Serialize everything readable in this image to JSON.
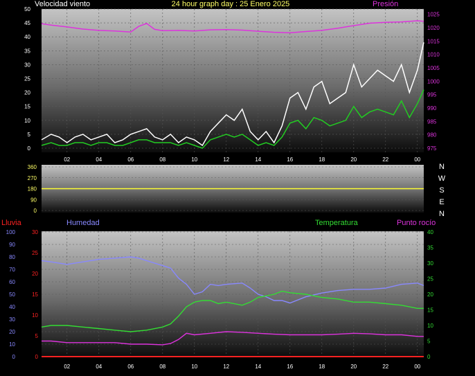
{
  "colors": {
    "wind_avg": "#22cc22",
    "wind_gust": "#ffffff",
    "pressure": "#dd33dd",
    "direction": "#ffff33",
    "rain": "#ff2222",
    "humidity": "#8888ff",
    "temperature": "#33dd33",
    "dewpoint": "#dd33dd",
    "text_white": "#ffffff",
    "text_yellow": "#ffff66"
  },
  "header": {
    "wind_label": "Velocidad viento",
    "title": "24 hour graph day : 25 Enero 2025",
    "pressure_label": "Presión"
  },
  "compass": [
    "N",
    "W",
    "S",
    "E",
    "N"
  ],
  "bottom_labels": {
    "rain": "Lluvia",
    "humidity": "Humedad",
    "temperature": "Temperatura",
    "dewpoint": "Punto rocío"
  },
  "chart_data": [
    {
      "type": "line",
      "name": "wind_pressure",
      "x_ticks": [
        "02",
        "04",
        "06",
        "08",
        "10",
        "12",
        "14",
        "16",
        "18",
        "20",
        "22",
        "00"
      ],
      "x_tick_hours": [
        2,
        4,
        6,
        8,
        10,
        12,
        14,
        16,
        18,
        20,
        22,
        24
      ],
      "xlim": [
        0.4,
        24.4
      ],
      "y_left_ticks": [
        "0",
        "5",
        "10",
        "15",
        "20",
        "25",
        "30",
        "35",
        "40",
        "45",
        "50"
      ],
      "ylim_left": [
        0,
        50
      ],
      "y_right_ticks": [
        "975",
        "980",
        "985",
        "990",
        "995",
        "1000",
        "1005",
        "1010",
        "1015",
        "1020",
        "1025"
      ],
      "ylim_right": [
        975,
        1027
      ],
      "series": [
        {
          "key": "pressure",
          "axis": "right",
          "x": [
            0.4,
            1,
            2,
            3,
            4,
            5,
            6,
            6.5,
            7,
            7.5,
            8,
            9,
            10,
            11,
            12,
            13,
            14,
            15,
            16,
            17,
            18,
            19,
            20,
            21,
            22,
            23,
            24,
            24.4
          ],
          "y": [
            1021.5,
            1021,
            1020.3,
            1019.5,
            1019.0,
            1018.8,
            1018.4,
            1020.5,
            1021.6,
            1019.4,
            1018.9,
            1019,
            1018.8,
            1019.2,
            1019.3,
            1019.1,
            1018.7,
            1018.3,
            1018.1,
            1018.6,
            1019.0,
            1019.8,
            1020.8,
            1021.7,
            1022.0,
            1022.2,
            1022.6,
            1022.4
          ]
        },
        {
          "key": "wind_gust",
          "axis": "left",
          "x": [
            0.4,
            1,
            1.5,
            2,
            2.5,
            3,
            3.5,
            4,
            4.5,
            5,
            5.5,
            6,
            6.5,
            7,
            7.5,
            8,
            8.5,
            9,
            9.5,
            10,
            10.5,
            11,
            11.5,
            12,
            12.5,
            13,
            13.5,
            14,
            14.5,
            15,
            15.5,
            16,
            16.5,
            17,
            17.5,
            18,
            18.5,
            19,
            19.5,
            20,
            20.5,
            21,
            21.5,
            22,
            22.5,
            23,
            23.5,
            24,
            24.4
          ],
          "y": [
            3,
            5,
            4,
            2,
            4,
            5,
            3,
            4,
            5,
            2,
            3,
            5,
            6,
            7,
            4,
            3,
            5,
            2,
            4,
            3,
            1,
            6,
            9,
            12,
            10,
            14,
            6,
            3,
            6,
            2,
            8,
            18,
            20,
            14,
            22,
            24,
            16,
            18,
            20,
            30,
            22,
            25,
            28,
            26,
            24,
            30,
            20,
            28,
            38
          ]
        },
        {
          "key": "wind_avg",
          "axis": "left",
          "x": [
            0.4,
            1,
            1.5,
            2,
            2.5,
            3,
            3.5,
            4,
            4.5,
            5,
            5.5,
            6,
            6.5,
            7,
            7.5,
            8,
            8.5,
            9,
            9.5,
            10,
            10.5,
            11,
            11.5,
            12,
            12.5,
            13,
            13.5,
            14,
            14.5,
            15,
            15.5,
            16,
            16.5,
            17,
            17.5,
            18,
            18.5,
            19,
            19.5,
            20,
            20.5,
            21,
            21.5,
            22,
            22.5,
            23,
            23.5,
            24,
            24.4
          ],
          "y": [
            1,
            2,
            1,
            1,
            2,
            2,
            1,
            2,
            2,
            1,
            1,
            2,
            3,
            3,
            2,
            2,
            2,
            1,
            2,
            1,
            0,
            3,
            4,
            5,
            4,
            5,
            3,
            1,
            2,
            1,
            4,
            9,
            10,
            7,
            11,
            10,
            8,
            9,
            10,
            15,
            11,
            13,
            14,
            13,
            12,
            17,
            11,
            16,
            21
          ]
        }
      ]
    },
    {
      "type": "line",
      "name": "wind_direction",
      "x_tick_hours": [
        2,
        4,
        6,
        8,
        10,
        12,
        14,
        16,
        18,
        20,
        22,
        24
      ],
      "xlim": [
        0.4,
        24.4
      ],
      "y_ticks": [
        "360",
        "270",
        "180",
        "90",
        "0"
      ],
      "ylim": [
        0,
        360
      ],
      "series": [
        {
          "key": "direction",
          "x": [
            0.4,
            24.4
          ],
          "y": [
            180,
            180
          ]
        }
      ]
    },
    {
      "type": "line",
      "name": "humidity_temperature",
      "x_ticks": [
        "02",
        "04",
        "06",
        "08",
        "10",
        "12",
        "14",
        "16",
        "18",
        "20",
        "22",
        "00"
      ],
      "x_tick_hours": [
        2,
        4,
        6,
        8,
        10,
        12,
        14,
        16,
        18,
        20,
        22,
        24
      ],
      "xlim": [
        0.4,
        24.4
      ],
      "y_humidity_ticks": [
        "0",
        "10",
        "20",
        "30",
        "40",
        "50",
        "60",
        "70",
        "80",
        "90",
        "100"
      ],
      "ylim_humidity": [
        0,
        100
      ],
      "y_rain_ticks": [
        "0",
        "5",
        "10",
        "15",
        "20",
        "25",
        "30"
      ],
      "ylim_rain": [
        0,
        30
      ],
      "y_temp_ticks": [
        "0",
        "5",
        "10",
        "15",
        "20",
        "25",
        "30",
        "35",
        "40"
      ],
      "ylim_temp": [
        0,
        40
      ],
      "series": [
        {
          "key": "humidity",
          "axis": "humidity",
          "x": [
            0.4,
            1,
            2,
            3,
            4,
            5,
            6,
            6.5,
            7,
            8,
            8.5,
            9,
            9.5,
            10,
            10.5,
            11,
            11.5,
            12,
            13,
            13.5,
            14,
            14.5,
            15,
            15.5,
            16,
            17,
            18,
            19,
            20,
            21,
            22,
            23,
            24,
            24.4
          ],
          "y": [
            77,
            76,
            74,
            76,
            78,
            79,
            80,
            79,
            77,
            73,
            71,
            63,
            58,
            50,
            52,
            58,
            57,
            58,
            59,
            55,
            50,
            48,
            45,
            45,
            43,
            48,
            51,
            53,
            54,
            54,
            55,
            58,
            59,
            57
          ]
        },
        {
          "key": "temperature",
          "axis": "temp",
          "x": [
            0.4,
            1,
            2,
            3,
            4,
            5,
            6,
            7,
            8,
            8.5,
            9,
            9.5,
            10,
            10.5,
            11,
            11.5,
            12,
            13,
            13.5,
            14,
            14.5,
            15,
            15.5,
            16,
            17,
            18,
            19,
            20,
            21,
            22,
            23,
            24,
            24.4
          ],
          "y": [
            9.5,
            10,
            10,
            9.5,
            9,
            8.5,
            8,
            8.5,
            9.5,
            10.5,
            13,
            16,
            17.5,
            18,
            18,
            17,
            17.5,
            16.5,
            17.5,
            19,
            19.5,
            20,
            21,
            20.5,
            20,
            19,
            18.5,
            17.5,
            17.5,
            17,
            16.5,
            15.5,
            15.5
          ]
        },
        {
          "key": "dewpoint",
          "axis": "temp",
          "x": [
            0.4,
            1,
            2,
            3,
            4,
            5,
            6,
            7,
            8,
            8.5,
            9,
            9.5,
            10,
            11,
            12,
            13,
            14,
            15,
            16,
            17,
            18,
            19,
            20,
            21,
            22,
            23,
            24,
            24.4
          ],
          "y": [
            5,
            5,
            4.5,
            4.5,
            4.5,
            4.5,
            4,
            4,
            3.8,
            4.2,
            5.5,
            7.5,
            7,
            7.5,
            8,
            7.8,
            7.5,
            7.2,
            7,
            7,
            7,
            7.2,
            7.5,
            7.3,
            7,
            7,
            6.5,
            6.5
          ]
        },
        {
          "key": "rain",
          "axis": "rain",
          "x": [
            0.4,
            24.4
          ],
          "y": [
            0,
            0
          ]
        }
      ]
    }
  ]
}
